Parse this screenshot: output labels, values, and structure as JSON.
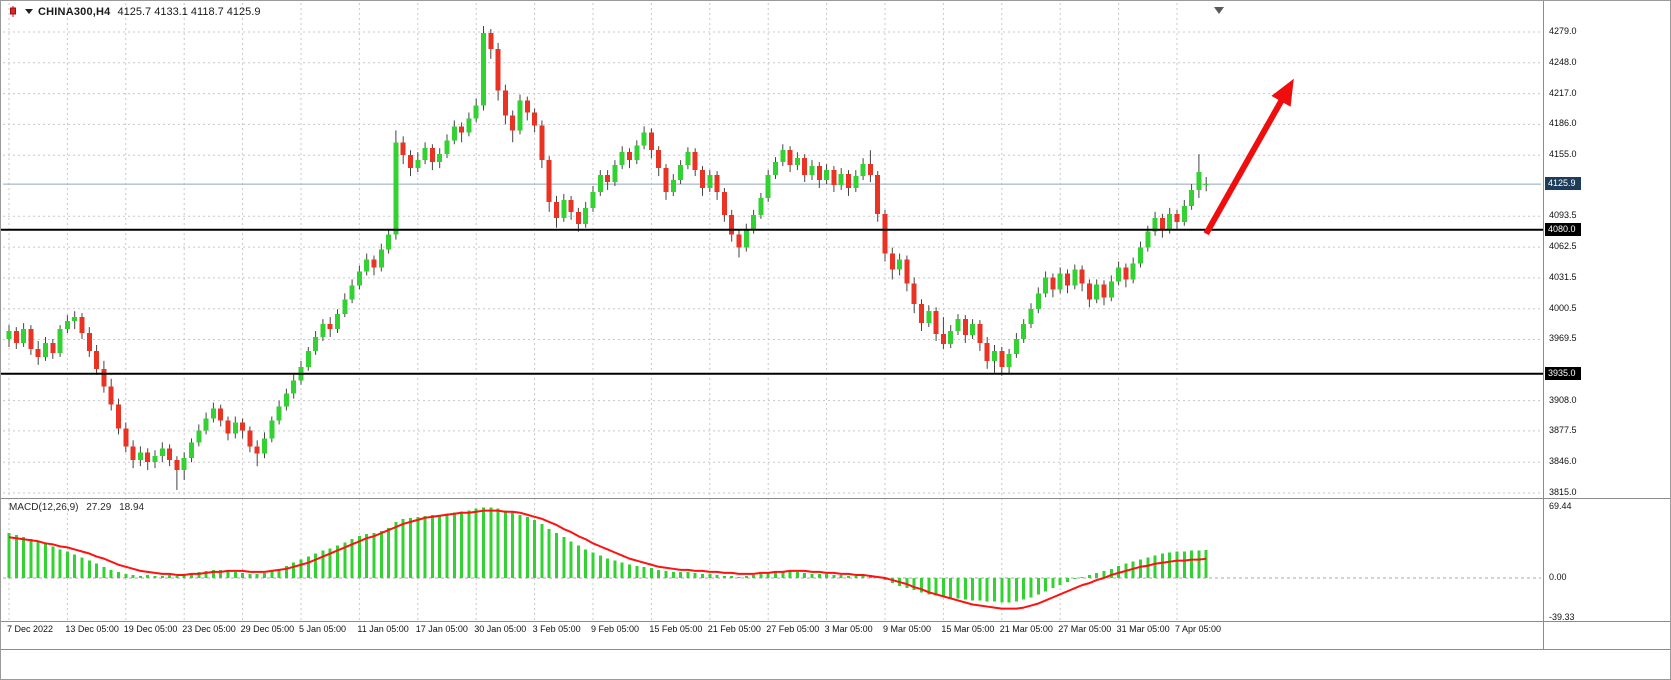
{
  "header": {
    "symbol": "CHINA300,H4",
    "ohlc": "4125.7 4133.1 4118.7 4125.9"
  },
  "indicator": {
    "label": "MACD(12,26,9)",
    "macd_value": "27.29",
    "signal_value": "18.94"
  },
  "price_axis": {
    "ticks": [
      {
        "label": "4279.0",
        "value": 4279.0
      },
      {
        "label": "4248.0",
        "value": 4248.0
      },
      {
        "label": "4217.0",
        "value": 4217.0
      },
      {
        "label": "4186.0",
        "value": 4186.0
      },
      {
        "label": "4155.0",
        "value": 4155.0
      },
      {
        "label": "4093.5",
        "value": 4093.5
      },
      {
        "label": "4062.5",
        "value": 4062.5
      },
      {
        "label": "4031.5",
        "value": 4031.5
      },
      {
        "label": "4000.5",
        "value": 4000.5
      },
      {
        "label": "3969.5",
        "value": 3969.5
      },
      {
        "label": "3908.0",
        "value": 3908.0
      },
      {
        "label": "3877.5",
        "value": 3877.5
      },
      {
        "label": "3846.0",
        "value": 3846.0
      },
      {
        "label": "3815.0",
        "value": 3815.0
      }
    ],
    "current_price": {
      "label": "4125.9",
      "value": 4125.9
    },
    "levels": [
      {
        "label": "4080.0",
        "value": 4080.0
      },
      {
        "label": "3935.0",
        "value": 3935.0
      }
    ]
  },
  "macd_axis": {
    "ticks": [
      {
        "label": "69.44",
        "value": 69.44
      },
      {
        "label": "0.00",
        "value": 0
      },
      {
        "label": "-39.33",
        "value": -39.33
      }
    ]
  },
  "time_axis": {
    "labels": [
      {
        "label": "7 Dec 2022",
        "index": 0
      },
      {
        "label": "13 Dec 05:00",
        "index": 8
      },
      {
        "label": "19 Dec 05:00",
        "index": 16
      },
      {
        "label": "23 Dec 05:00",
        "index": 24
      },
      {
        "label": "29 Dec 05:00",
        "index": 32
      },
      {
        "label": "5 Jan 05:00",
        "index": 40
      },
      {
        "label": "11 Jan 05:00",
        "index": 48
      },
      {
        "label": "17 Jan 05:00",
        "index": 56
      },
      {
        "label": "30 Jan 05:00",
        "index": 64
      },
      {
        "label": "3 Feb 05:00",
        "index": 72
      },
      {
        "label": "9 Feb 05:00",
        "index": 80
      },
      {
        "label": "15 Feb 05:00",
        "index": 88
      },
      {
        "label": "21 Feb 05:00",
        "index": 96
      },
      {
        "label": "27 Feb 05:00",
        "index": 104
      },
      {
        "label": "3 Mar 05:00",
        "index": 112
      },
      {
        "label": "9 Mar 05:00",
        "index": 120
      },
      {
        "label": "15 Mar 05:00",
        "index": 128
      },
      {
        "label": "21 Mar 05:00",
        "index": 136
      },
      {
        "label": "27 Mar 05:00",
        "index": 144
      },
      {
        "label": "31 Mar 05:00",
        "index": 152
      },
      {
        "label": "7 Apr 05:00",
        "index": 160
      }
    ]
  },
  "chart_data": {
    "type": "candlestick",
    "symbol": "CHINA300",
    "timeframe": "H4",
    "title": "CHINA300,H4 4125.7 4133.1 4118.7 4125.9",
    "price_range": {
      "top": 4279.0,
      "bottom": 3815.0
    },
    "current_price": 4125.9,
    "hlines": [
      {
        "value": 4080.0
      },
      {
        "value": 3935.0
      }
    ],
    "arrow": {
      "from_index": 164,
      "from_price": 4076,
      "to_index": 176,
      "to_price": 4232
    },
    "candles": [
      [
        3970,
        3984,
        3962,
        3978
      ],
      [
        3978,
        3982,
        3960,
        3966
      ],
      [
        3966,
        3986,
        3962,
        3980
      ],
      [
        3980,
        3984,
        3954,
        3960
      ],
      [
        3960,
        3968,
        3944,
        3952
      ],
      [
        3952,
        3972,
        3948,
        3966
      ],
      [
        3966,
        3970,
        3950,
        3956
      ],
      [
        3956,
        3984,
        3952,
        3980
      ],
      [
        3980,
        3994,
        3976,
        3988
      ],
      [
        3988,
        3998,
        3980,
        3992
      ],
      [
        3992,
        3996,
        3970,
        3976
      ],
      [
        3976,
        3982,
        3952,
        3958
      ],
      [
        3958,
        3964,
        3934,
        3940
      ],
      [
        3940,
        3948,
        3916,
        3922
      ],
      [
        3922,
        3930,
        3898,
        3904
      ],
      [
        3904,
        3910,
        3874,
        3880
      ],
      [
        3880,
        3886,
        3856,
        3862
      ],
      [
        3862,
        3868,
        3840,
        3848
      ],
      [
        3848,
        3862,
        3842,
        3856
      ],
      [
        3856,
        3860,
        3838,
        3846
      ],
      [
        3846,
        3858,
        3840,
        3852
      ],
      [
        3852,
        3866,
        3846,
        3860
      ],
      [
        3860,
        3864,
        3842,
        3848
      ],
      [
        3848,
        3852,
        3818,
        3838
      ],
      [
        3838,
        3856,
        3828,
        3850
      ],
      [
        3850,
        3870,
        3846,
        3866
      ],
      [
        3866,
        3884,
        3862,
        3878
      ],
      [
        3878,
        3896,
        3874,
        3890
      ],
      [
        3890,
        3906,
        3886,
        3900
      ],
      [
        3900,
        3904,
        3882,
        3888
      ],
      [
        3888,
        3892,
        3868,
        3875
      ],
      [
        3875,
        3892,
        3870,
        3886
      ],
      [
        3886,
        3890,
        3870,
        3878
      ],
      [
        3878,
        3882,
        3856,
        3862
      ],
      [
        3862,
        3868,
        3842,
        3855
      ],
      [
        3855,
        3876,
        3850,
        3870
      ],
      [
        3870,
        3892,
        3866,
        3888
      ],
      [
        3888,
        3908,
        3884,
        3902
      ],
      [
        3902,
        3920,
        3898,
        3915
      ],
      [
        3915,
        3934,
        3910,
        3928
      ],
      [
        3928,
        3948,
        3924,
        3942
      ],
      [
        3942,
        3962,
        3938,
        3958
      ],
      [
        3958,
        3978,
        3954,
        3972
      ],
      [
        3972,
        3990,
        3968,
        3985
      ],
      [
        3985,
        3992,
        3972,
        3980
      ],
      [
        3980,
        4000,
        3976,
        3995
      ],
      [
        3995,
        4016,
        3992,
        4010
      ],
      [
        4010,
        4030,
        4006,
        4024
      ],
      [
        4024,
        4044,
        4020,
        4038
      ],
      [
        4038,
        4056,
        4034,
        4050
      ],
      [
        4050,
        4054,
        4034,
        4042
      ],
      [
        4042,
        4066,
        4038,
        4060
      ],
      [
        4060,
        4080,
        4056,
        4075
      ],
      [
        4075,
        4180,
        4070,
        4168
      ],
      [
        4168,
        4174,
        4146,
        4155
      ],
      [
        4155,
        4160,
        4134,
        4142
      ],
      [
        4142,
        4158,
        4138,
        4150
      ],
      [
        4150,
        4168,
        4146,
        4162
      ],
      [
        4162,
        4166,
        4140,
        4148
      ],
      [
        4148,
        4162,
        4142,
        4156
      ],
      [
        4156,
        4176,
        4152,
        4170
      ],
      [
        4170,
        4190,
        4166,
        4184
      ],
      [
        4184,
        4188,
        4168,
        4178
      ],
      [
        4178,
        4198,
        4174,
        4192
      ],
      [
        4192,
        4212,
        4188,
        4205
      ],
      [
        4205,
        4285,
        4200,
        4278
      ],
      [
        4278,
        4282,
        4252,
        4262
      ],
      [
        4262,
        4268,
        4210,
        4220
      ],
      [
        4220,
        4226,
        4186,
        4195
      ],
      [
        4195,
        4200,
        4168,
        4180
      ],
      [
        4180,
        4216,
        4176,
        4210
      ],
      [
        4210,
        4214,
        4190,
        4198
      ],
      [
        4198,
        4202,
        4178,
        4185
      ],
      [
        4185,
        4190,
        4142,
        4150
      ],
      [
        4150,
        4154,
        4098,
        4108
      ],
      [
        4108,
        4114,
        4082,
        4092
      ],
      [
        4092,
        4116,
        4088,
        4110
      ],
      [
        4110,
        4114,
        4090,
        4098
      ],
      [
        4098,
        4102,
        4078,
        4086
      ],
      [
        4086,
        4108,
        4082,
        4102
      ],
      [
        4102,
        4124,
        4098,
        4118
      ],
      [
        4118,
        4140,
        4114,
        4135
      ],
      [
        4135,
        4140,
        4120,
        4128
      ],
      [
        4128,
        4150,
        4124,
        4145
      ],
      [
        4145,
        4164,
        4141,
        4158
      ],
      [
        4158,
        4162,
        4142,
        4150
      ],
      [
        4150,
        4170,
        4146,
        4165
      ],
      [
        4165,
        4184,
        4161,
        4178
      ],
      [
        4178,
        4182,
        4152,
        4160
      ],
      [
        4160,
        4164,
        4134,
        4142
      ],
      [
        4142,
        4146,
        4110,
        4118
      ],
      [
        4118,
        4136,
        4114,
        4130
      ],
      [
        4130,
        4150,
        4126,
        4145
      ],
      [
        4145,
        4163,
        4141,
        4158
      ],
      [
        4158,
        4162,
        4134,
        4140
      ],
      [
        4140,
        4144,
        4114,
        4122
      ],
      [
        4122,
        4140,
        4118,
        4135
      ],
      [
        4135,
        4139,
        4110,
        4118
      ],
      [
        4118,
        4122,
        4088,
        4095
      ],
      [
        4095,
        4100,
        4068,
        4075
      ],
      [
        4075,
        4080,
        4052,
        4062
      ],
      [
        4062,
        4086,
        4058,
        4080
      ],
      [
        4080,
        4100,
        4076,
        4095
      ],
      [
        4095,
        4117,
        4091,
        4112
      ],
      [
        4112,
        4140,
        4108,
        4135
      ],
      [
        4135,
        4153,
        4131,
        4148
      ],
      [
        4148,
        4166,
        4144,
        4160
      ],
      [
        4160,
        4164,
        4138,
        4145
      ],
      [
        4145,
        4158,
        4140,
        4152
      ],
      [
        4152,
        4156,
        4128,
        4135
      ],
      [
        4135,
        4150,
        4130,
        4144
      ],
      [
        4144,
        4148,
        4122,
        4130
      ],
      [
        4130,
        4146,
        4126,
        4140
      ],
      [
        4140,
        4144,
        4118,
        4125
      ],
      [
        4125,
        4142,
        4120,
        4136
      ],
      [
        4136,
        4140,
        4114,
        4122
      ],
      [
        4122,
        4140,
        4118,
        4134
      ],
      [
        4134,
        4152,
        4130,
        4146
      ],
      [
        4146,
        4160,
        4128,
        4135
      ],
      [
        4135,
        4139,
        4088,
        4096
      ],
      [
        4096,
        4100,
        4048,
        4056
      ],
      [
        4056,
        4062,
        4030,
        4040
      ],
      [
        4040,
        4056,
        4034,
        4050
      ],
      [
        4050,
        4054,
        4018,
        4026
      ],
      [
        4026,
        4032,
        3996,
        4005
      ],
      [
        4005,
        4010,
        3978,
        3986
      ],
      [
        3986,
        4004,
        3982,
        3998
      ],
      [
        3998,
        4002,
        3968,
        3975
      ],
      [
        3975,
        3992,
        3960,
        3965
      ],
      [
        3965,
        3984,
        3961,
        3978
      ],
      [
        3978,
        3995,
        3974,
        3990
      ],
      [
        3990,
        3994,
        3966,
        3974
      ],
      [
        3974,
        3990,
        3970,
        3985
      ],
      [
        3985,
        3989,
        3958,
        3966
      ],
      [
        3966,
        3972,
        3940,
        3948
      ],
      [
        3948,
        3964,
        3936,
        3958
      ],
      [
        3958,
        3962,
        3933,
        3942
      ],
      [
        3942,
        3960,
        3935,
        3955
      ],
      [
        3955,
        3976,
        3951,
        3970
      ],
      [
        3970,
        3990,
        3966,
        3985
      ],
      [
        3985,
        4006,
        3981,
        4000
      ],
      [
        4000,
        4022,
        3996,
        4016
      ],
      [
        4016,
        4038,
        4012,
        4032
      ],
      [
        4032,
        4036,
        4012,
        4020
      ],
      [
        4020,
        4042,
        4016,
        4036
      ],
      [
        4036,
        4040,
        4016,
        4024
      ],
      [
        4024,
        4045,
        4020,
        4040
      ],
      [
        4040,
        4044,
        4018,
        4026
      ],
      [
        4026,
        4030,
        4002,
        4010
      ],
      [
        4010,
        4030,
        4006,
        4025
      ],
      [
        4025,
        4029,
        4004,
        4012
      ],
      [
        4012,
        4034,
        4008,
        4028
      ],
      [
        4028,
        4048,
        4024,
        4042
      ],
      [
        4042,
        4046,
        4022,
        4030
      ],
      [
        4030,
        4052,
        4026,
        4046
      ],
      [
        4046,
        4068,
        4042,
        4062
      ],
      [
        4062,
        4084,
        4058,
        4078
      ],
      [
        4078,
        4098,
        4074,
        4092
      ],
      [
        4092,
        4096,
        4072,
        4080
      ],
      [
        4080,
        4102,
        4076,
        4096
      ],
      [
        4096,
        4100,
        4080,
        4088
      ],
      [
        4088,
        4110,
        4084,
        4104
      ],
      [
        4104,
        4126,
        4100,
        4120
      ],
      [
        4120,
        4156,
        4112,
        4138
      ],
      [
        4125.7,
        4133.1,
        4118.7,
        4125.9
      ]
    ],
    "macd": {
      "range": {
        "top": 69.44,
        "bottom": -39.33
      },
      "histogram": [
        44,
        42,
        40,
        38,
        36,
        34,
        31,
        28,
        26,
        23,
        20,
        17,
        14,
        11,
        8,
        6,
        4,
        3,
        2,
        3,
        2,
        2,
        3,
        2,
        3,
        4,
        6,
        7,
        8,
        8,
        7,
        6,
        5,
        4,
        4,
        5,
        7,
        9,
        12,
        15,
        18,
        21,
        24,
        27,
        29,
        32,
        35,
        38,
        41,
        43,
        44,
        46,
        49,
        55,
        58,
        59,
        60,
        61,
        62,
        62,
        63,
        64,
        65,
        66,
        68,
        69,
        69,
        68,
        66,
        64,
        62,
        60,
        57,
        53,
        48,
        44,
        40,
        36,
        32,
        28,
        25,
        22,
        19,
        17,
        15,
        13,
        12,
        11,
        10,
        8,
        7,
        6,
        6,
        6,
        5,
        4,
        4,
        3,
        2,
        2,
        1,
        2,
        3,
        4,
        5,
        6,
        7,
        7,
        6,
        5,
        4,
        4,
        4,
        3,
        3,
        2,
        2,
        3,
        3,
        1,
        -2,
        -5,
        -8,
        -10,
        -12,
        -14,
        -16,
        -17,
        -18,
        -19,
        -20,
        -21,
        -22,
        -22,
        -23,
        -23,
        -24,
        -24,
        -23,
        -21,
        -19,
        -16,
        -13,
        -10,
        -7,
        -4,
        -1,
        1,
        3,
        5,
        7,
        9,
        12,
        14,
        16,
        18,
        20,
        22,
        24,
        25,
        26,
        26,
        27,
        27,
        27.29
      ],
      "signal": [
        40,
        39,
        38,
        37,
        36,
        34,
        33,
        31,
        30,
        28,
        26,
        24,
        21,
        19,
        16,
        13,
        11,
        9,
        7,
        6,
        5,
        4,
        4,
        3,
        3,
        4,
        4,
        5,
        6,
        6,
        7,
        7,
        7,
        6,
        6,
        6,
        7,
        8,
        9,
        11,
        13,
        15,
        18,
        21,
        24,
        27,
        30,
        33,
        36,
        39,
        41,
        44,
        47,
        50,
        53,
        55,
        57,
        59,
        60,
        61,
        62,
        63,
        64,
        64,
        65,
        66,
        66,
        66,
        65,
        65,
        64,
        62,
        60,
        58,
        55,
        52,
        48,
        45,
        41,
        38,
        34,
        31,
        28,
        25,
        22,
        19,
        17,
        15,
        13,
        11,
        10,
        9,
        8,
        8,
        7,
        7,
        6,
        6,
        5,
        5,
        4,
        4,
        4,
        5,
        5,
        6,
        6,
        7,
        7,
        7,
        6,
        6,
        5,
        5,
        4,
        4,
        3,
        3,
        2,
        1,
        0,
        -2,
        -4,
        -6,
        -9,
        -11,
        -14,
        -16,
        -18,
        -20,
        -22,
        -24,
        -26,
        -27,
        -28,
        -29,
        -30,
        -30,
        -30,
        -29,
        -27,
        -25,
        -22,
        -19,
        -16,
        -13,
        -10,
        -7,
        -5,
        -2,
        0,
        3,
        5,
        7,
        9,
        11,
        12,
        14,
        15,
        16,
        17,
        17,
        18,
        18,
        18.94
      ]
    }
  },
  "colors": {
    "bull": "#32d232",
    "bear": "#ea3323",
    "wick": "#444444",
    "grid": "#c8c8c8",
    "macd_hist": "#32d232",
    "signal_line": "#ff1111",
    "macd_zero": "#a8a8a8",
    "arrow": "#ef0d0d",
    "level_line": "#000000",
    "current_line": "#8ea8bd",
    "badge_current_bg": "#1d3c5a",
    "badge_level_bg": "#000000",
    "shift_marker": "#5a5a5a"
  }
}
